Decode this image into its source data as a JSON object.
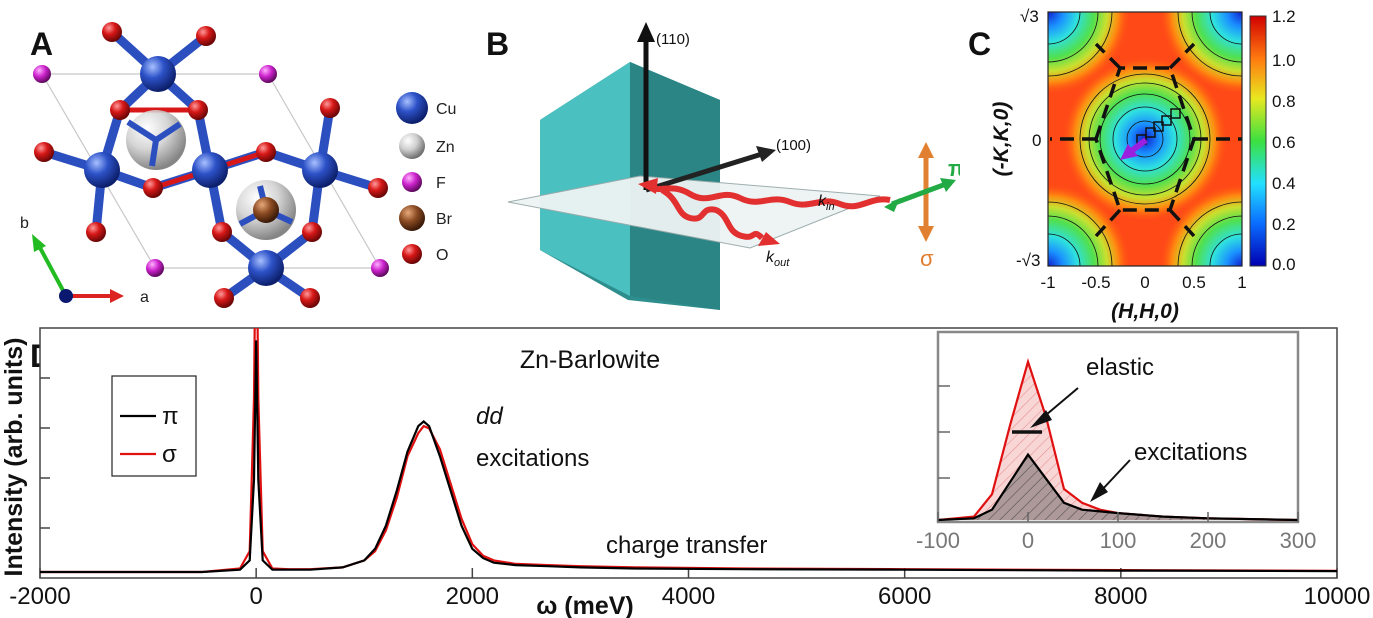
{
  "panels": {
    "a": {
      "label": "A",
      "legend": [
        "Cu",
        "Zn",
        "F",
        "Br",
        "O"
      ],
      "legend_colors": [
        "#2d52c8",
        "#a8a8a8",
        "#cc22cc",
        "#8a4a22",
        "#d81818"
      ],
      "axis_b": "b",
      "axis_a": "a"
    },
    "b": {
      "label": "B",
      "dir_110": "(110)",
      "dir_100": "(100)",
      "k_in": "k",
      "k_in_sub": "in",
      "k_out": "k",
      "k_out_sub": "out",
      "pol_pi": "π",
      "pol_sigma": "σ"
    },
    "c": {
      "label": "C",
      "ylabel": "(-K,K,0)",
      "xlabel": "(H,H,0)",
      "yticks": [
        "√3",
        "0",
        "-√3"
      ],
      "xticks": [
        "-1",
        "-0.5",
        "0",
        "0.5",
        "1"
      ],
      "colorbar_ticks": [
        "1.2",
        "1.0",
        "0.8",
        "0.6",
        "0.4",
        "0.2",
        "0.0"
      ]
    },
    "d": {
      "label": "D",
      "title": "Zn-Barlowite",
      "annot_dd_1": "dd",
      "annot_dd_2": "excitations",
      "annot_ct": "charge transfer",
      "inset_elastic": "elastic",
      "inset_excitations": "excitations"
    }
  },
  "chart_data": {
    "type": "line",
    "title": "Zn-Barlowite",
    "xlabel": "ω (meV)",
    "ylabel": "Intensity (arb. units)",
    "xlim": [
      -2000,
      10000
    ],
    "xticks": [
      "-2000",
      "0",
      "2000",
      "4000",
      "6000",
      "8000",
      "10000"
    ],
    "legend_position": "top-left",
    "series": [
      {
        "name": "π",
        "color": "#000000",
        "x": [
          -2000,
          -500,
          -150,
          -60,
          -20,
          0,
          20,
          60,
          150,
          300,
          500,
          800,
          1000,
          1100,
          1200,
          1300,
          1400,
          1500,
          1550,
          1600,
          1700,
          1800,
          1900,
          2000,
          2100,
          2200,
          2400,
          2700,
          3000,
          3500,
          4500,
          6000,
          8000,
          10000
        ],
        "y": [
          0.0,
          0.0,
          0.01,
          0.05,
          0.4,
          1.0,
          0.4,
          0.05,
          0.01,
          0.01,
          0.01,
          0.02,
          0.05,
          0.1,
          0.2,
          0.35,
          0.52,
          0.63,
          0.65,
          0.63,
          0.5,
          0.35,
          0.2,
          0.1,
          0.06,
          0.04,
          0.03,
          0.025,
          0.02,
          0.015,
          0.012,
          0.01,
          0.006,
          0.004
        ]
      },
      {
        "name": "σ",
        "color": "#e01010",
        "x": [
          -2000,
          -500,
          -150,
          -60,
          -20,
          0,
          20,
          60,
          150,
          300,
          500,
          800,
          1000,
          1100,
          1200,
          1300,
          1400,
          1500,
          1550,
          1600,
          1700,
          1800,
          1900,
          2000,
          2100,
          2200,
          2400,
          2700,
          3000,
          3500,
          4500,
          6000,
          8000,
          10000
        ],
        "y": [
          0.0,
          0.0,
          0.015,
          0.09,
          0.75,
          1.7,
          0.75,
          0.09,
          0.015,
          0.012,
          0.012,
          0.02,
          0.05,
          0.09,
          0.18,
          0.32,
          0.5,
          0.6,
          0.63,
          0.62,
          0.53,
          0.38,
          0.23,
          0.12,
          0.07,
          0.05,
          0.035,
          0.03,
          0.025,
          0.02,
          0.015,
          0.012,
          0.008,
          0.005
        ]
      }
    ],
    "inset": {
      "type": "area",
      "xlim": [
        -100,
        300
      ],
      "xticks": [
        "-100",
        "0",
        "100",
        "200",
        "300"
      ],
      "series": [
        {
          "name": "π",
          "color": "#000000",
          "x": [
            -100,
            -60,
            -40,
            -20,
            0,
            20,
            40,
            60,
            80,
            100,
            150,
            200,
            300
          ],
          "y": [
            0.0,
            0.01,
            0.06,
            0.22,
            0.38,
            0.24,
            0.1,
            0.06,
            0.05,
            0.04,
            0.02,
            0.01,
            0.0
          ]
        },
        {
          "name": "σ",
          "color": "#e01010",
          "x": [
            -100,
            -60,
            -40,
            -20,
            0,
            20,
            40,
            60,
            80,
            100,
            150,
            200,
            300
          ],
          "y": [
            0.0,
            0.02,
            0.15,
            0.55,
            0.92,
            0.6,
            0.18,
            0.1,
            0.06,
            0.04,
            0.02,
            0.01,
            0.0
          ]
        }
      ]
    }
  }
}
